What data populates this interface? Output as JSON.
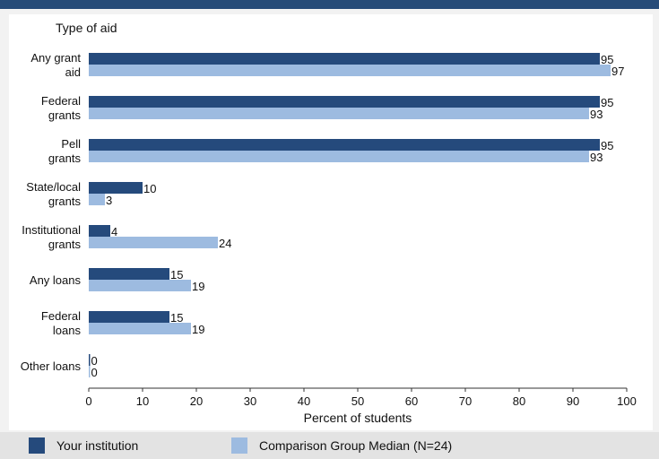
{
  "chart_data": {
    "type": "bar",
    "orientation": "horizontal",
    "title": "",
    "category_axis_title": "Type of aid",
    "xlabel": "Percent of students",
    "xlim": [
      0,
      100
    ],
    "xticks": [
      0,
      10,
      20,
      30,
      40,
      50,
      60,
      70,
      80,
      90,
      100
    ],
    "grid": false,
    "legend_position": "bottom",
    "categories": [
      [
        "Any grant",
        "aid"
      ],
      [
        "Federal",
        "grants"
      ],
      [
        "Pell",
        "grants"
      ],
      [
        "State/local",
        "grants"
      ],
      [
        "Institutional",
        "grants"
      ],
      [
        "Any loans"
      ],
      [
        "Federal",
        "loans"
      ],
      [
        "Other loans"
      ]
    ],
    "series": [
      {
        "name": "Your institution",
        "color": "#254a7c",
        "values": [
          95,
          95,
          95,
          10,
          4,
          15,
          15,
          0
        ]
      },
      {
        "name": "Comparison Group Median (N=24)",
        "color": "#9dbbe0",
        "values": [
          97,
          93,
          93,
          3,
          24,
          19,
          19,
          0
        ]
      }
    ]
  }
}
